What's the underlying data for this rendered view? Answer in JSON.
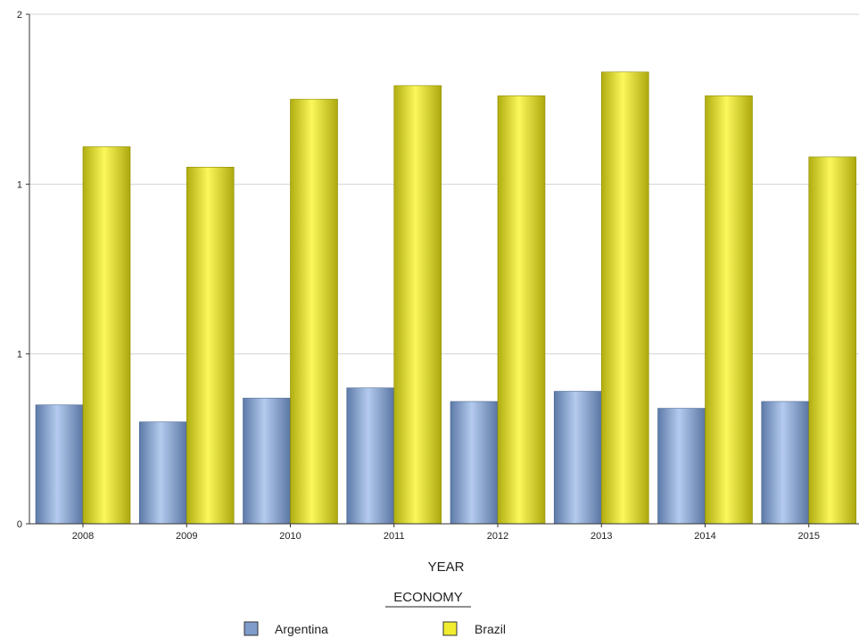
{
  "chart_data": {
    "type": "bar",
    "title": "",
    "xlabel": "YEAR",
    "ylabel": "",
    "categories": [
      "2008",
      "2009",
      "2010",
      "2011",
      "2012",
      "2013",
      "2014",
      "2015"
    ],
    "series": [
      {
        "name": "Argentina",
        "color": "#8eaad6",
        "values": [
          0.35,
          0.3,
          0.37,
          0.4,
          0.36,
          0.39,
          0.34,
          0.36
        ]
      },
      {
        "name": "Brazil",
        "color": "#e4e02a",
        "values": [
          1.11,
          1.05,
          1.25,
          1.29,
          1.26,
          1.33,
          1.26,
          1.08
        ]
      }
    ],
    "ylim": [
      0,
      1.5
    ],
    "y_ticks": [
      {
        "value": 0,
        "label": "0"
      },
      {
        "value": 0.5,
        "label": "1"
      },
      {
        "value": 1.0,
        "label": "1"
      },
      {
        "value": 1.5,
        "label": "2"
      }
    ],
    "grid": true,
    "legend": {
      "title": "ECONOMY",
      "placement": "bottom"
    }
  }
}
